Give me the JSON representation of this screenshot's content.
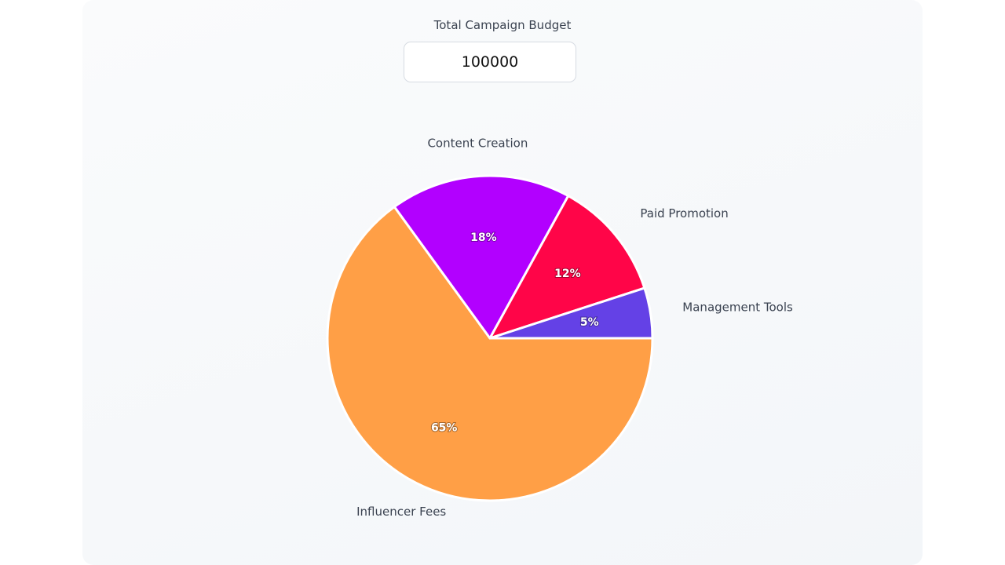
{
  "budget": {
    "label": "Total Campaign Budget",
    "value": "100000"
  },
  "chart_data": {
    "type": "pie",
    "title": "",
    "categories": [
      "Influencer Fees",
      "Content Creation",
      "Paid Promotion",
      "Management Tools"
    ],
    "values": [
      65,
      18,
      12,
      5
    ],
    "value_labels": [
      "65%",
      "18%",
      "12%",
      "5%"
    ],
    "colors": [
      "#FF9F46",
      "#B200FF",
      "#FF0548",
      "#6441E6"
    ],
    "start_angle_deg": 0,
    "direction": "clockwise",
    "legend": "none",
    "slice_border_color": "#ffffff"
  }
}
